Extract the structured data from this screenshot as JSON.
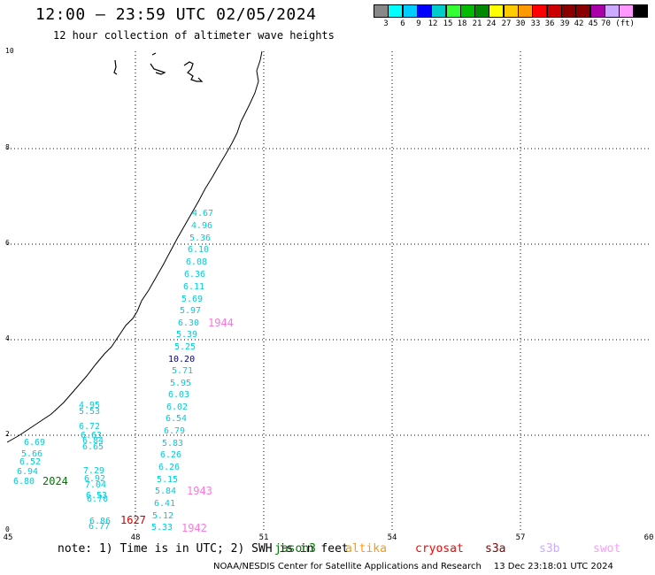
{
  "header": {
    "title": "12:00 – 23:59 UTC 02/05/2024",
    "subtitle": "12 hour collection of altimeter wave heights"
  },
  "legend": {
    "colors": [
      "#888888",
      "#00ffff",
      "#00ccff",
      "#0000ff",
      "#00cccc",
      "#33ff33",
      "#00bb00",
      "#008800",
      "#ffff00",
      "#ffcc00",
      "#ff9900",
      "#ff0000",
      "#cc0000",
      "#880000",
      "#880000",
      "#aa00aa",
      "#ccaaff",
      "#ff99ff",
      "#000000"
    ],
    "labels": [
      "3",
      "6",
      "9",
      "12",
      "15",
      "18",
      "21",
      "24",
      "27",
      "30",
      "33",
      "36",
      "39",
      "42",
      "45",
      "70 (ft)"
    ]
  },
  "axes": {
    "x_ticks": [
      "45",
      "48",
      "51",
      "54",
      "57",
      "60"
    ],
    "y_ticks": [
      "0",
      "2",
      "4",
      "6",
      "8",
      "10"
    ]
  },
  "swh_colors": {
    "cyan": "#00ccdd",
    "blue": "#00008b",
    "pass_green": "#007700",
    "pass_red": "#cc0000",
    "pass_pink": "#ff77dd"
  },
  "swh_values": [
    {
      "v": "4.67",
      "c": "cyan"
    },
    {
      "v": "4.96",
      "c": "cyan"
    },
    {
      "v": "5.36",
      "c": "cyan"
    },
    {
      "v": "6.10",
      "c": "cyan"
    },
    {
      "v": "6.08",
      "c": "cyan"
    },
    {
      "v": "6.36",
      "c": "cyan"
    },
    {
      "v": "6.11",
      "c": "cyan"
    },
    {
      "v": "5.69",
      "c": "cyan"
    },
    {
      "v": "5.97",
      "c": "cyan"
    },
    {
      "v": "6.30",
      "c": "cyan"
    },
    {
      "v": "5.39",
      "c": "cyan"
    },
    {
      "v": "5.25",
      "c": "cyan"
    },
    {
      "v": "10.20",
      "c": "blue"
    },
    {
      "v": "5.71",
      "c": "cyan"
    },
    {
      "v": "5.95",
      "c": "cyan"
    },
    {
      "v": "6.03",
      "c": "cyan"
    },
    {
      "v": "6.02",
      "c": "cyan"
    },
    {
      "v": "6.54",
      "c": "cyan"
    },
    {
      "v": "6.79",
      "c": "cyan"
    },
    {
      "v": "5.83",
      "c": "cyan"
    },
    {
      "v": "6.26",
      "c": "cyan"
    },
    {
      "v": "6.26",
      "c": "cyan"
    },
    {
      "v": "5.15",
      "c": "cyan"
    },
    {
      "v": "5.84",
      "c": "cyan"
    },
    {
      "v": "6.41",
      "c": "cyan"
    },
    {
      "v": "5.12",
      "c": "cyan"
    },
    {
      "v": "5.33",
      "c": "cyan"
    },
    {
      "v": "4.95",
      "c": "cyan"
    },
    {
      "v": "5.53",
      "c": "cyan"
    },
    {
      "v": "6.72",
      "c": "cyan"
    },
    {
      "v": "6.63",
      "c": "cyan"
    },
    {
      "v": "6.84",
      "c": "cyan"
    },
    {
      "v": "6.65",
      "c": "cyan"
    },
    {
      "v": "6.69",
      "c": "cyan"
    },
    {
      "v": "5.66",
      "c": "cyan"
    },
    {
      "v": "6.52",
      "c": "cyan"
    },
    {
      "v": "6.94",
      "c": "cyan"
    },
    {
      "v": "6.80",
      "c": "cyan"
    },
    {
      "v": "7.29",
      "c": "cyan"
    },
    {
      "v": "6.92",
      "c": "cyan"
    },
    {
      "v": "7.04",
      "c": "cyan"
    },
    {
      "v": "6.53",
      "c": "cyan"
    },
    {
      "v": "6.70",
      "c": "cyan"
    },
    {
      "v": "6.86",
      "c": "cyan"
    },
    {
      "v": "6.77",
      "c": "cyan"
    }
  ],
  "pass_times": [
    {
      "t": "1944",
      "c": "pass_pink"
    },
    {
      "t": "1943",
      "c": "pass_pink"
    },
    {
      "t": "1942",
      "c": "pass_pink"
    },
    {
      "t": "2024",
      "c": "pass_green"
    },
    {
      "t": "1627",
      "c": "pass_red"
    }
  ],
  "notes": {
    "text": "note: 1) Time is in UTC; 2) SWH is in feet",
    "satellites": [
      {
        "name": "jason3",
        "color": "#007700"
      },
      {
        "name": "altika",
        "color": "#ff9900"
      },
      {
        "name": "cryosat",
        "color": "#ff0000"
      },
      {
        "name": "s3a",
        "color": "#880000"
      },
      {
        "name": "s3b",
        "color": "#ccaaff"
      },
      {
        "name": "swot",
        "color": "#ff99ff"
      }
    ]
  },
  "footer": {
    "org": "NOAA/NESDIS Center for Satellite Applications and Research",
    "timestamp": "13 Dec 23:18:01 UTC 2024"
  }
}
